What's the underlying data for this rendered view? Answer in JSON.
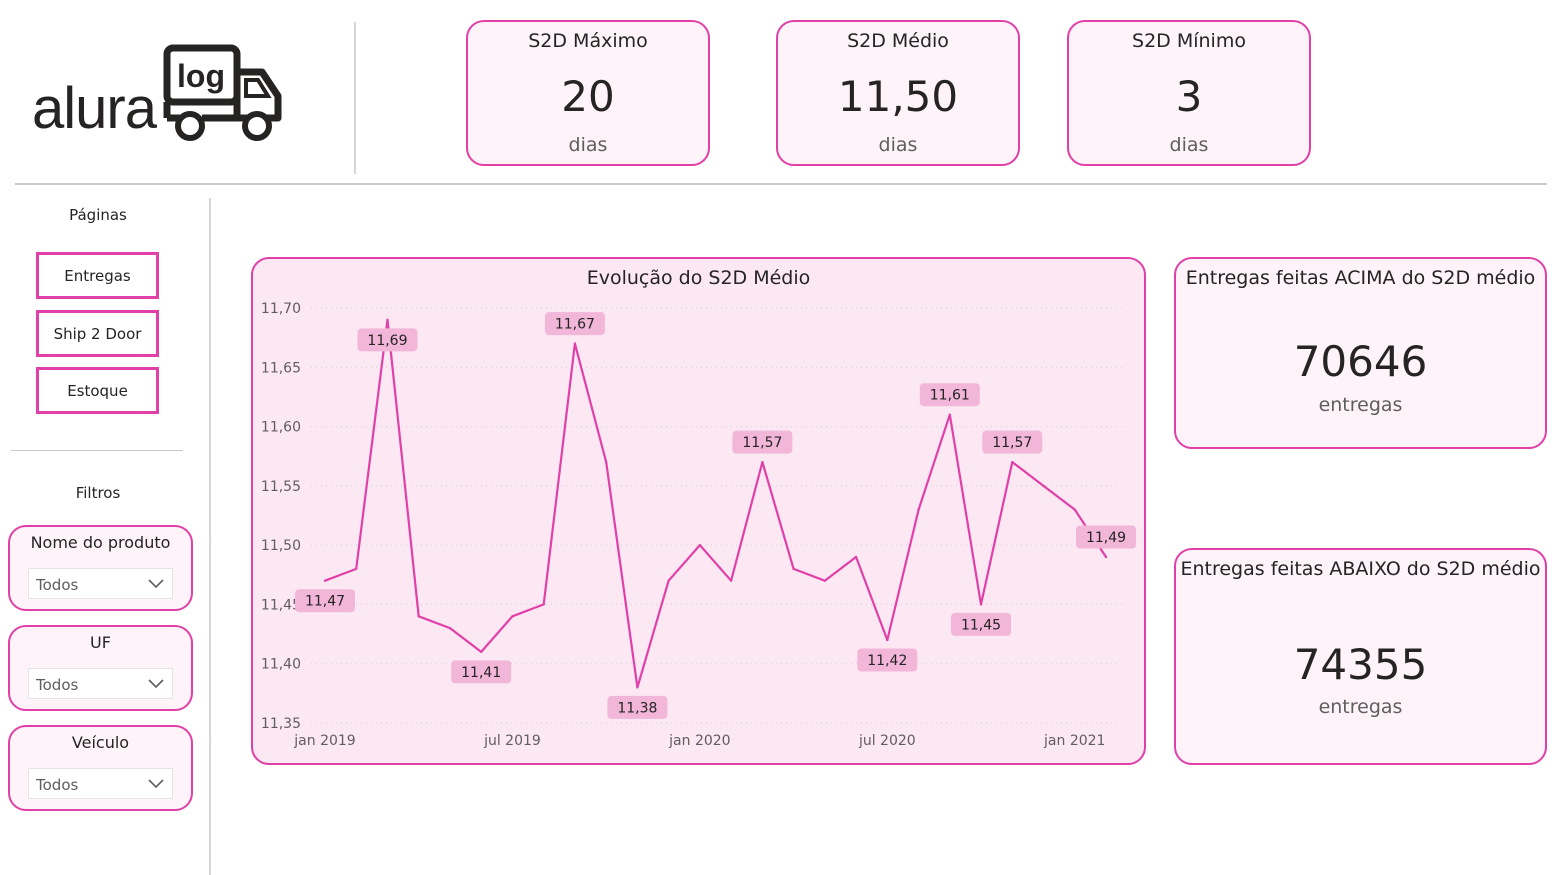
{
  "logo": {
    "text": "alura",
    "badge": "log"
  },
  "kpis": [
    {
      "title": "S2D Máximo",
      "value": "20",
      "unit": "dias"
    },
    {
      "title": "S2D Médio",
      "value": "11,50",
      "unit": "dias"
    },
    {
      "title": "S2D Mínimo",
      "value": "3",
      "unit": "dias"
    }
  ],
  "sidebar": {
    "pages_title": "Páginas",
    "pages": [
      {
        "label": "Entregas"
      },
      {
        "label": "Ship 2 Door"
      },
      {
        "label": "Estoque"
      }
    ],
    "filters_title": "Filtros",
    "filters": [
      {
        "label": "Nome do produto",
        "value": "Todos"
      },
      {
        "label": "UF",
        "value": "Todos"
      },
      {
        "label": "Veículo",
        "value": "Todos"
      }
    ]
  },
  "chart_data": {
    "type": "line",
    "title": "Evolução do S2D Médio",
    "x": [
      "2019-01",
      "2019-02",
      "2019-03",
      "2019-04",
      "2019-05",
      "2019-06",
      "2019-07",
      "2019-08",
      "2019-09",
      "2019-10",
      "2019-11",
      "2019-12",
      "2020-01",
      "2020-02",
      "2020-03",
      "2020-04",
      "2020-05",
      "2020-06",
      "2020-07",
      "2020-08",
      "2020-09",
      "2020-10",
      "2020-11",
      "2020-12",
      "2021-01",
      "2021-02"
    ],
    "values": [
      11.47,
      11.48,
      11.69,
      11.44,
      11.43,
      11.41,
      11.44,
      11.45,
      11.67,
      11.57,
      11.38,
      11.47,
      11.5,
      11.47,
      11.57,
      11.48,
      11.47,
      11.49,
      11.42,
      11.53,
      11.61,
      11.45,
      11.57,
      11.55,
      11.53,
      11.49
    ],
    "data_labels": [
      {
        "x": "2019-01",
        "text": "11,47",
        "pos": "below"
      },
      {
        "x": "2019-03",
        "text": "11,69",
        "pos": "below"
      },
      {
        "x": "2019-06",
        "text": "11,41",
        "pos": "below"
      },
      {
        "x": "2019-09",
        "text": "11,67",
        "pos": "above"
      },
      {
        "x": "2019-11",
        "text": "11,38",
        "pos": "below"
      },
      {
        "x": "2020-03",
        "text": "11,57",
        "pos": "above"
      },
      {
        "x": "2020-07",
        "text": "11,42",
        "pos": "below"
      },
      {
        "x": "2020-09",
        "text": "11,61",
        "pos": "above"
      },
      {
        "x": "2020-10",
        "text": "11,45",
        "pos": "below"
      },
      {
        "x": "2020-11",
        "text": "11,57",
        "pos": "above"
      },
      {
        "x": "2021-02",
        "text": "11,49",
        "pos": "above"
      }
    ],
    "y_ticks": [
      "11,35",
      "11,40",
      "11,45",
      "11,50",
      "11,55",
      "11,60",
      "11,65",
      "11,70"
    ],
    "y_tick_values": [
      11.35,
      11.4,
      11.45,
      11.5,
      11.55,
      11.6,
      11.65,
      11.7
    ],
    "x_ticks": [
      {
        "x": "2019-01",
        "label": "jan 2019"
      },
      {
        "x": "2019-07",
        "label": "jul 2019"
      },
      {
        "x": "2020-01",
        "label": "jan 2020"
      },
      {
        "x": "2020-07",
        "label": "jul 2020"
      },
      {
        "x": "2021-01",
        "label": "jan 2021"
      }
    ],
    "ylim": [
      11.35,
      11.7
    ],
    "grid": "horizontal-dotted",
    "line_color": "#e040a8",
    "label_bg": "#f2b6d9"
  },
  "right_kpis": [
    {
      "title": "Entregas feitas ACIMA do S2D médio",
      "value": "70646",
      "unit": "entregas"
    },
    {
      "title": "Entregas feitas ABAIXO do S2D médio",
      "value": "74355",
      "unit": "entregas"
    }
  ],
  "colors": {
    "accent": "#e040a8",
    "card_bg": "#fdf3f9",
    "chart_bg": "#fce8f3"
  }
}
